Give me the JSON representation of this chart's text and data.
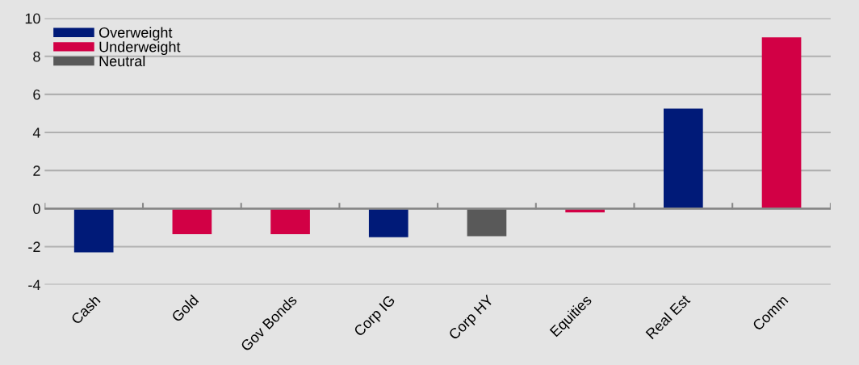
{
  "chart_data": {
    "type": "bar",
    "categories": [
      "Cash",
      "Gold",
      "Gov Bonds",
      "Corp IG",
      "Corp HY",
      "Equities",
      "Real Est",
      "Comm"
    ],
    "series": [
      {
        "name": "Overweight",
        "color": "#001a78",
        "values": [
          -2.3,
          null,
          null,
          -1.5,
          null,
          null,
          5.25,
          null
        ]
      },
      {
        "name": "Underweight",
        "color": "#d20045",
        "values": [
          null,
          -1.35,
          -1.35,
          null,
          null,
          -0.2,
          null,
          9.0
        ]
      },
      {
        "name": "Neutral",
        "color": "#595959",
        "values": [
          null,
          null,
          null,
          null,
          -1.45,
          null,
          null,
          null
        ]
      }
    ],
    "ylim": [
      -4,
      10
    ],
    "yticks": [
      -4,
      -2,
      0,
      2,
      4,
      6,
      8,
      10
    ],
    "grid": "y",
    "legend": "top left"
  }
}
